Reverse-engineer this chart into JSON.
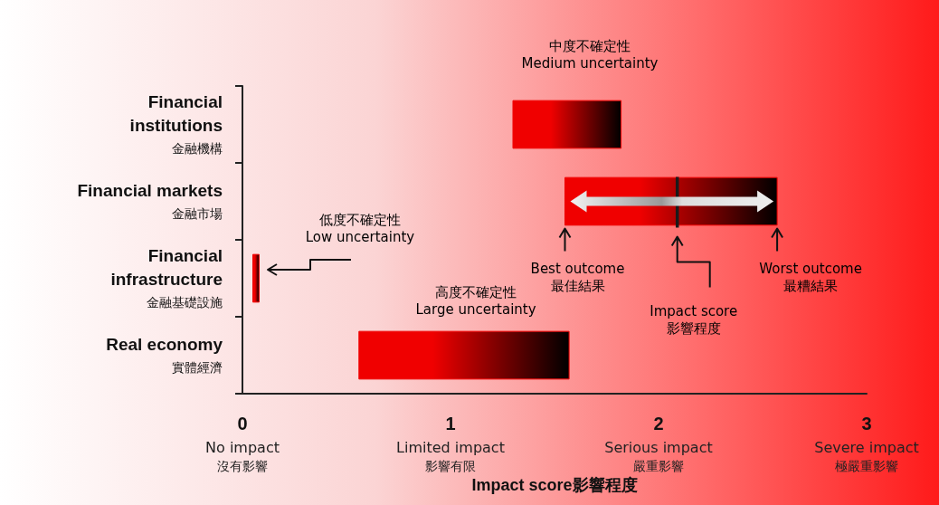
{
  "chart_data": {
    "type": "bar",
    "orientation": "horizontal",
    "categories": [
      "Financial\ninstitutions\n金融機構",
      "Financial markets\n金融市場",
      "Financial\ninfrastructure\n金融基礎設施",
      "Real economy\n實體經濟"
    ],
    "xlabel": "Impact score影響程度",
    "xlim": [
      0,
      3
    ],
    "xticks": [
      {
        "value": 0,
        "label": "0\nNo impact\n沒有影響"
      },
      {
        "value": 1,
        "label": "1\nLimited impact\n影響有限"
      },
      {
        "value": 2,
        "label": "2\nSerious impact\n嚴重影響"
      },
      {
        "value": 3,
        "label": "3\nSevere impact\n極嚴重影響"
      }
    ],
    "grid": false,
    "ref_lines": [
      {
        "axis": "x",
        "value": 2.09,
        "color": "#1a1a1a"
      }
    ],
    "series": [
      {
        "color": "#f00000",
        "base": [
          1.3,
          1.55,
          0.05,
          0.56
        ],
        "values": [
          0.52,
          1.02,
          0.03,
          1.01
        ]
      }
    ],
    "annotations": [
      "中度不確定性\nMedium uncertainty",
      "低度不確定性\nLow uncertainty",
      "高度不確定性\nLarge uncertainty",
      {
        "text": "Best outcome\n最佳結果",
        "x": 1.55,
        "y": "Financial markets\n金融市場"
      },
      "Impact score\n影響程度",
      {
        "text": "Worst outcome\n最糟結果",
        "x": 2.57,
        "y": "Financial markets\n金融市場"
      }
    ]
  }
}
